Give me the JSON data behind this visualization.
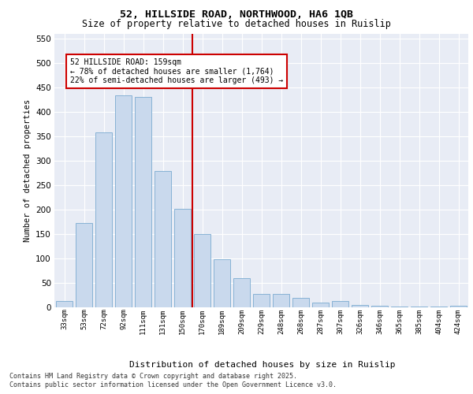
{
  "title1": "52, HILLSIDE ROAD, NORTHWOOD, HA6 1QB",
  "title2": "Size of property relative to detached houses in Ruislip",
  "xlabel": "Distribution of detached houses by size in Ruislip",
  "ylabel": "Number of detached properties",
  "categories": [
    "33sqm",
    "53sqm",
    "72sqm",
    "92sqm",
    "111sqm",
    "131sqm",
    "150sqm",
    "170sqm",
    "189sqm",
    "209sqm",
    "229sqm",
    "248sqm",
    "268sqm",
    "287sqm",
    "307sqm",
    "326sqm",
    "346sqm",
    "365sqm",
    "385sqm",
    "404sqm",
    "424sqm"
  ],
  "values": [
    13,
    172,
    357,
    434,
    430,
    278,
    202,
    150,
    99,
    59,
    28,
    27,
    20,
    9,
    13,
    5,
    3,
    2,
    1,
    1,
    3
  ],
  "bar_color": "#c9d9ed",
  "bar_edge_color": "#7aaad0",
  "vline_color": "#cc0000",
  "vline_x": 6.5,
  "annotation_text": "52 HILLSIDE ROAD: 159sqm\n← 78% of detached houses are smaller (1,764)\n22% of semi-detached houses are larger (493) →",
  "ylim": [
    0,
    560
  ],
  "yticks": [
    0,
    50,
    100,
    150,
    200,
    250,
    300,
    350,
    400,
    450,
    500,
    550
  ],
  "plot_bg_color": "#e8ecf5",
  "footer1": "Contains HM Land Registry data © Crown copyright and database right 2025.",
  "footer2": "Contains public sector information licensed under the Open Government Licence v3.0."
}
